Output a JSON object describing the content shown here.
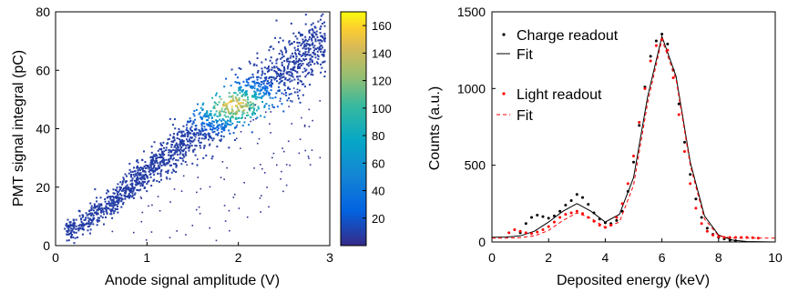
{
  "chart_data": [
    {
      "type": "heatmap",
      "title": "",
      "xlabel": "Anode signal amplitude (V)",
      "ylabel": "PMT signal integral (pC)",
      "xlim": [
        0,
        3
      ],
      "ylim": [
        0,
        80
      ],
      "xticks": [
        "0",
        "1",
        "2",
        "3"
      ],
      "yticks": [
        "0",
        "20",
        "40",
        "60",
        "80"
      ],
      "colorbar": {
        "ticks": [
          "20",
          "40",
          "60",
          "80",
          "100",
          "120",
          "140",
          "160"
        ],
        "range": [
          0,
          170
        ],
        "colormap": "parula"
      },
      "density_ridge": {
        "x": [
          0.1,
          0.5,
          1.0,
          1.5,
          2.0,
          2.5,
          2.9
        ],
        "y": [
          4,
          12,
          25,
          38,
          48,
          60,
          70
        ]
      },
      "peak": {
        "x": 1.95,
        "y": 48,
        "count": 165
      }
    },
    {
      "type": "scatter",
      "title": "",
      "xlabel": "Deposited energy (keV)",
      "ylabel": "Counts (a.u.)",
      "xlim": [
        0,
        10
      ],
      "ylim": [
        0,
        1500
      ],
      "xticks": [
        "0",
        "2",
        "4",
        "6",
        "8",
        "10"
      ],
      "yticks": [
        "0",
        "500",
        "1000",
        "1500"
      ],
      "legend_position": "top-left",
      "series": [
        {
          "name": "Charge readout",
          "style": "dots",
          "color": "#000000",
          "x": [
            1.0,
            1.2,
            1.4,
            1.6,
            1.8,
            2.0,
            2.2,
            2.4,
            2.6,
            2.8,
            3.0,
            3.2,
            3.4,
            3.6,
            3.8,
            4.0,
            4.2,
            4.4,
            4.6,
            4.8,
            5.0,
            5.2,
            5.4,
            5.6,
            5.8,
            6.0,
            6.2,
            6.4,
            6.6,
            6.8,
            7.0,
            7.2,
            7.4,
            7.6,
            7.8,
            8.0,
            8.2,
            8.4,
            8.6
          ],
          "y": [
            60,
            120,
            160,
            175,
            165,
            155,
            170,
            200,
            240,
            270,
            310,
            290,
            245,
            190,
            150,
            125,
            120,
            140,
            200,
            330,
            520,
            760,
            1010,
            1210,
            1310,
            1355,
            1290,
            1120,
            900,
            650,
            440,
            280,
            160,
            90,
            50,
            30,
            20,
            12,
            8
          ]
        },
        {
          "name": "Fit",
          "style": "solid",
          "color": "#000000",
          "x": [
            0.0,
            0.5,
            1.0,
            1.5,
            2.0,
            2.5,
            3.0,
            3.5,
            4.0,
            4.5,
            5.0,
            5.5,
            6.0,
            6.5,
            7.0,
            7.5,
            8.0,
            8.5,
            9.0,
            10.0
          ],
          "y": [
            30,
            32,
            40,
            70,
            130,
            200,
            250,
            200,
            130,
            180,
            420,
            950,
            1340,
            1080,
            520,
            170,
            45,
            12,
            3,
            0
          ]
        },
        {
          "name": "Light readout",
          "style": "dots",
          "color": "#ff0000",
          "x": [
            0.6,
            0.8,
            1.0,
            1.2,
            1.4,
            1.6,
            1.8,
            2.0,
            2.2,
            2.4,
            2.6,
            2.8,
            3.0,
            3.2,
            3.4,
            3.6,
            3.8,
            4.0,
            4.2,
            4.4,
            4.6,
            4.8,
            5.0,
            5.2,
            5.4,
            5.6,
            5.8,
            6.0,
            6.2,
            6.4,
            6.6,
            6.8,
            7.0,
            7.2,
            7.4,
            7.6,
            7.8,
            8.0,
            8.2,
            8.4,
            8.6,
            8.8,
            9.0,
            9.2,
            9.4
          ],
          "y": [
            60,
            80,
            70,
            60,
            55,
            65,
            80,
            100,
            130,
            160,
            180,
            190,
            200,
            185,
            160,
            135,
            110,
            95,
            110,
            160,
            250,
            380,
            560,
            780,
            1000,
            1180,
            1280,
            1320,
            1250,
            1070,
            830,
            590,
            380,
            220,
            120,
            70,
            45,
            35,
            30,
            30,
            30,
            30,
            30,
            28,
            25
          ]
        },
        {
          "name": "Fit",
          "style": "dashed",
          "color": "#ff0000",
          "x": [
            0.0,
            0.5,
            1.0,
            1.5,
            2.0,
            2.5,
            3.0,
            3.5,
            4.0,
            4.5,
            5.0,
            5.5,
            6.0,
            6.5,
            7.0,
            7.5,
            8.0,
            8.5,
            9.0,
            9.5,
            10.0
          ],
          "y": [
            25,
            25,
            28,
            40,
            75,
            140,
            190,
            155,
            95,
            130,
            370,
            910,
            1320,
            1060,
            500,
            150,
            40,
            25,
            25,
            25,
            25
          ]
        }
      ]
    }
  ]
}
